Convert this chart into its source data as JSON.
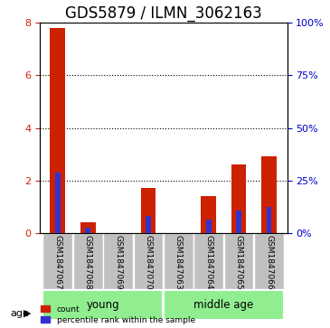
{
  "title": "GDS5879 / ILMN_3062163",
  "samples": [
    "GSM1847067",
    "GSM1847068",
    "GSM1847069",
    "GSM1847070",
    "GSM1847063",
    "GSM1847064",
    "GSM1847065",
    "GSM1847066"
  ],
  "count_values": [
    7.8,
    0.4,
    0.0,
    1.7,
    0.0,
    1.4,
    2.6,
    2.9
  ],
  "percentile_values": [
    2.3,
    0.2,
    0.0,
    0.65,
    0.0,
    0.5,
    0.85,
    1.0
  ],
  "percentile_right_values": [
    28.75,
    2.5,
    0.0,
    8.125,
    0.0,
    6.25,
    10.625,
    12.5
  ],
  "groups": [
    {
      "label": "young",
      "start": 0,
      "end": 4,
      "color": "#90EE90"
    },
    {
      "label": "middle age",
      "start": 4,
      "end": 8,
      "color": "#90EE90"
    }
  ],
  "ylim_left": [
    0,
    8
  ],
  "ylim_right": [
    0,
    100
  ],
  "yticks_left": [
    0,
    2,
    4,
    6,
    8
  ],
  "yticks_right": [
    0,
    25,
    50,
    75,
    100
  ],
  "bar_color_red": "#CC2200",
  "bar_color_blue": "#3333CC",
  "bar_width": 0.5,
  "tick_bg_color": "#C0C0C0",
  "age_label": "age",
  "legend_count": "count",
  "legend_percentile": "percentile rank within the sample",
  "title_fontsize": 12,
  "axis_label_color_left": "#CC2200",
  "axis_label_color_right": "#0000CC"
}
